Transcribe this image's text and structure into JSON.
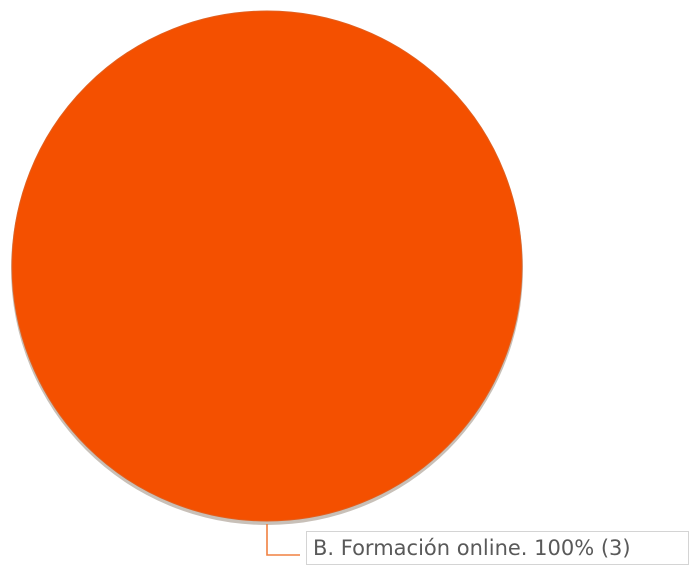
{
  "chart_data": {
    "type": "pie",
    "categories": [
      "B. Formación online"
    ],
    "values": [
      3
    ],
    "percentages": [
      100
    ],
    "colors": [
      "#f45000"
    ],
    "labels": [
      "B. Formación online. 100% (3)"
    ],
    "legend": "none"
  }
}
